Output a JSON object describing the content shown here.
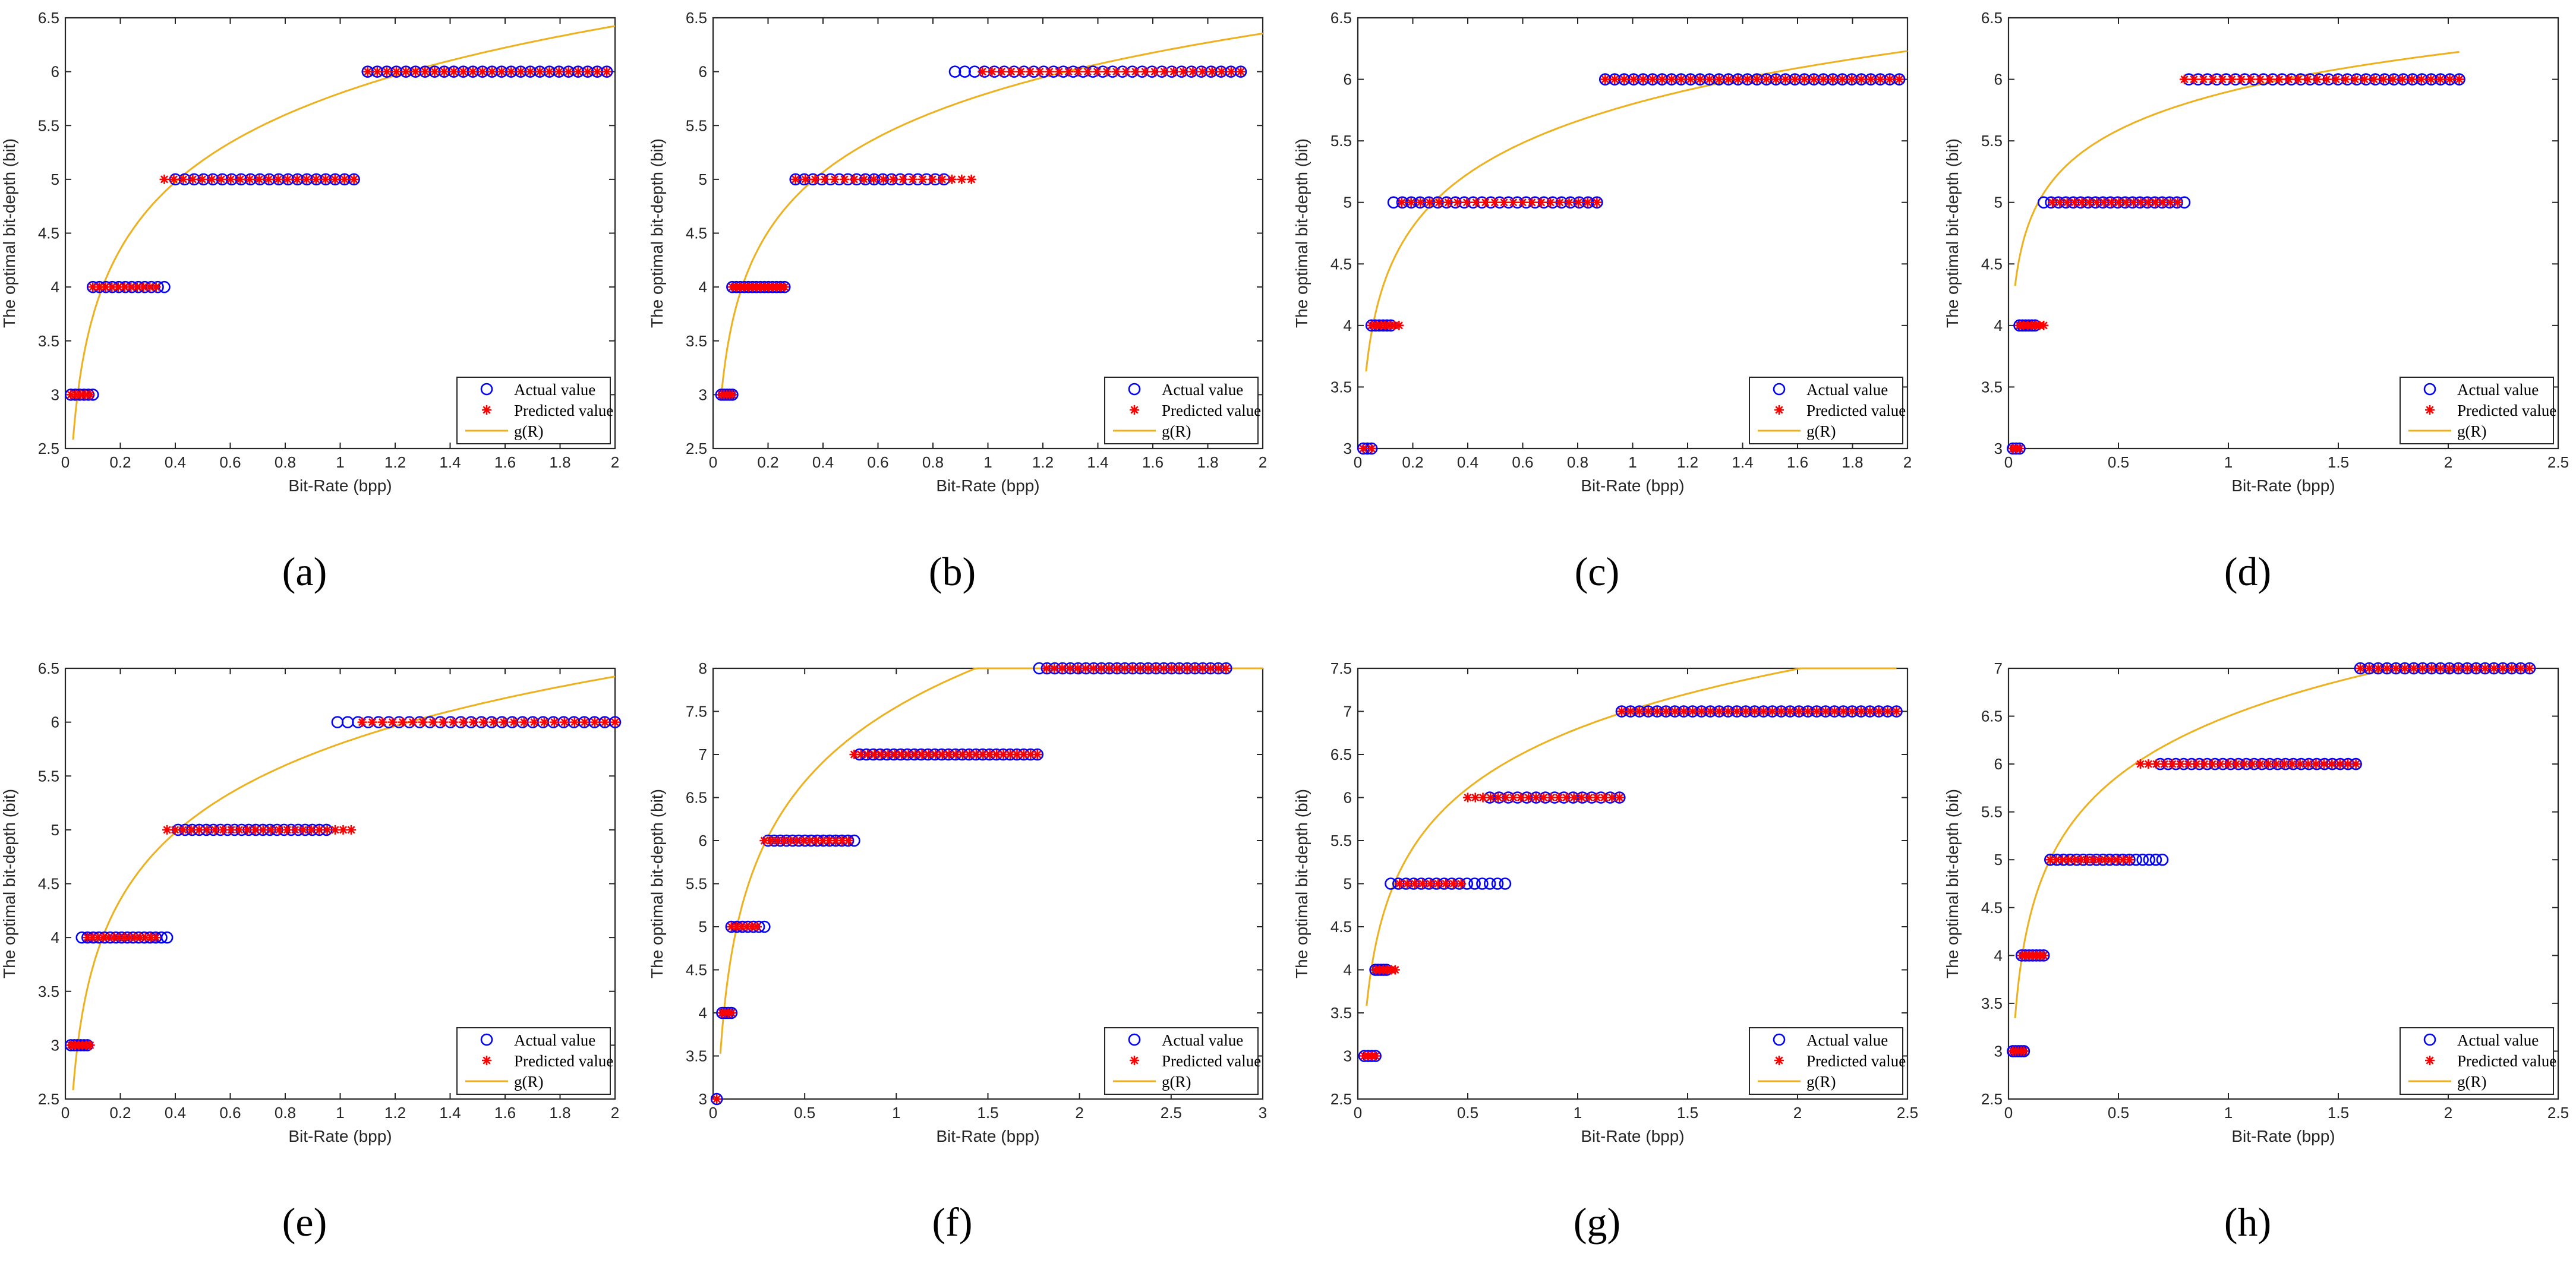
{
  "figure": {
    "common": {
      "xlabel": "Bit-Rate (bpp)",
      "ylabel": "The optimal bit-depth (bit)",
      "legend": [
        "Actual value",
        "Predicted value",
        "g(R)"
      ],
      "legend_position": "bottom-right",
      "colors": {
        "actual": "#0000ff",
        "predicted": "#ff0000",
        "curve": "#edb120",
        "axis": "#262626"
      }
    }
  },
  "chart_data": [
    {
      "label": "(a)",
      "type": "scatter",
      "xlim": [
        0,
        2
      ],
      "xticks": [
        0,
        0.2,
        0.4,
        0.6,
        0.8,
        1,
        1.2,
        1.4,
        1.6,
        1.8,
        2
      ],
      "ylim": [
        2.5,
        6.5
      ],
      "yticks": [
        2.5,
        3,
        3.5,
        4,
        4.5,
        5,
        5.5,
        6,
        6.5
      ],
      "actual": [
        {
          "level": 3,
          "x_from": 0.02,
          "x_to": 0.1,
          "count": 6
        },
        {
          "level": 4,
          "x_from": 0.1,
          "x_to": 0.36,
          "count": 12
        },
        {
          "level": 5,
          "x_from": 0.4,
          "x_to": 1.05,
          "count": 20
        },
        {
          "level": 6,
          "x_from": 1.1,
          "x_to": 1.97,
          "count": 26
        }
      ],
      "predicted": [
        {
          "level": 3,
          "x_from": 0.02,
          "x_to": 0.09,
          "count": 5
        },
        {
          "level": 4,
          "x_from": 0.1,
          "x_to": 0.33,
          "count": 11
        },
        {
          "level": 5,
          "x_from": 0.36,
          "x_to": 1.05,
          "count": 21
        },
        {
          "level": 6,
          "x_from": 1.1,
          "x_to": 1.97,
          "count": 26
        }
      ],
      "curve": {
        "a": 5.8,
        "b": 0.9,
        "x_from": 0.028
      }
    },
    {
      "label": "(b)",
      "type": "scatter",
      "xlim": [
        0,
        2
      ],
      "xticks": [
        0,
        0.2,
        0.4,
        0.6,
        0.8,
        1,
        1.2,
        1.4,
        1.6,
        1.8,
        2
      ],
      "ylim": [
        2.5,
        6.5
      ],
      "yticks": [
        2.5,
        3,
        3.5,
        4,
        4.5,
        5,
        5.5,
        6,
        6.5
      ],
      "actual": [
        {
          "level": 3,
          "x_from": 0.03,
          "x_to": 0.07,
          "count": 5
        },
        {
          "level": 4,
          "x_from": 0.07,
          "x_to": 0.26,
          "count": 14
        },
        {
          "level": 5,
          "x_from": 0.3,
          "x_to": 0.84,
          "count": 18
        },
        {
          "level": 6,
          "x_from": 0.88,
          "x_to": 1.92,
          "count": 30
        }
      ],
      "predicted": [
        {
          "level": 3,
          "x_from": 0.03,
          "x_to": 0.07,
          "count": 5
        },
        {
          "level": 4,
          "x_from": 0.07,
          "x_to": 0.26,
          "count": 14
        },
        {
          "level": 5,
          "x_from": 0.3,
          "x_to": 0.94,
          "count": 19
        },
        {
          "level": 6,
          "x_from": 0.98,
          "x_to": 1.92,
          "count": 28
        }
      ],
      "curve": {
        "a": 5.8,
        "b": 0.8,
        "x_from": 0.03
      }
    },
    {
      "label": "(c)",
      "type": "scatter",
      "xlim": [
        0,
        2
      ],
      "xticks": [
        0,
        0.2,
        0.4,
        0.6,
        0.8,
        1,
        1.2,
        1.4,
        1.6,
        1.8,
        2
      ],
      "ylim": [
        3,
        6.5
      ],
      "yticks": [
        3,
        3.5,
        4,
        4.5,
        5,
        5.5,
        6,
        6.5
      ],
      "actual": [
        {
          "level": 3,
          "x_from": 0.02,
          "x_to": 0.05,
          "count": 3
        },
        {
          "level": 4,
          "x_from": 0.05,
          "x_to": 0.12,
          "count": 6
        },
        {
          "level": 5,
          "x_from": 0.13,
          "x_to": 0.87,
          "count": 24
        },
        {
          "level": 6,
          "x_from": 0.9,
          "x_to": 1.97,
          "count": 32
        }
      ],
      "predicted": [
        {
          "level": 3,
          "x_from": 0.02,
          "x_to": 0.05,
          "count": 2
        },
        {
          "level": 4,
          "x_from": 0.05,
          "x_to": 0.15,
          "count": 7
        },
        {
          "level": 5,
          "x_from": 0.16,
          "x_to": 0.87,
          "count": 22
        },
        {
          "level": 6,
          "x_from": 0.9,
          "x_to": 1.97,
          "count": 32
        }
      ],
      "curve": {
        "a": 5.8,
        "b": 0.62,
        "x_from": 0.03
      }
    },
    {
      "label": "(d)",
      "type": "scatter",
      "xlim": [
        0,
        2.5
      ],
      "xticks": [
        0,
        0.5,
        1,
        1.5,
        2,
        2.5
      ],
      "ylim": [
        3,
        6.5
      ],
      "yticks": [
        3,
        3.5,
        4,
        4.5,
        5,
        5.5,
        6,
        6.5
      ],
      "actual": [
        {
          "level": 3,
          "x_from": 0.02,
          "x_to": 0.05,
          "count": 3
        },
        {
          "level": 4,
          "x_from": 0.05,
          "x_to": 0.12,
          "count": 6
        },
        {
          "level": 5,
          "x_from": 0.16,
          "x_to": 0.8,
          "count": 20
        },
        {
          "level": 6,
          "x_from": 0.82,
          "x_to": 2.05,
          "count": 30
        }
      ],
      "predicted": [
        {
          "level": 3,
          "x_from": 0.02,
          "x_to": 0.05,
          "count": 3
        },
        {
          "level": 4,
          "x_from": 0.05,
          "x_to": 0.16,
          "count": 7
        },
        {
          "level": 5,
          "x_from": 0.2,
          "x_to": 0.77,
          "count": 18
        },
        {
          "level": 6,
          "x_from": 0.8,
          "x_to": 2.05,
          "count": 30
        }
      ],
      "curve": {
        "a": 5.9,
        "b": 0.45,
        "x_from": 0.03,
        "x_to": 2.05
      }
    },
    {
      "label": "(e)",
      "type": "scatter",
      "xlim": [
        0,
        2
      ],
      "xticks": [
        0,
        0.2,
        0.4,
        0.6,
        0.8,
        1,
        1.2,
        1.4,
        1.6,
        1.8,
        2
      ],
      "ylim": [
        2.5,
        6.5
      ],
      "yticks": [
        2.5,
        3,
        3.5,
        4,
        4.5,
        5,
        5.5,
        6,
        6.5
      ],
      "actual": [
        {
          "level": 3,
          "x_from": 0.02,
          "x_to": 0.08,
          "count": 6
        },
        {
          "level": 4,
          "x_from": 0.06,
          "x_to": 0.37,
          "count": 16
        },
        {
          "level": 5,
          "x_from": 0.41,
          "x_to": 0.95,
          "count": 22
        },
        {
          "level": 6,
          "x_from": 0.99,
          "x_to": 2.0,
          "count": 28
        }
      ],
      "predicted": [
        {
          "level": 3,
          "x_from": 0.02,
          "x_to": 0.09,
          "count": 6
        },
        {
          "level": 4,
          "x_from": 0.08,
          "x_to": 0.33,
          "count": 14
        },
        {
          "level": 5,
          "x_from": 0.37,
          "x_to": 1.04,
          "count": 24
        },
        {
          "level": 6,
          "x_from": 1.08,
          "x_to": 2.0,
          "count": 26
        }
      ],
      "curve": {
        "a": 5.8,
        "b": 0.9,
        "x_from": 0.028
      }
    },
    {
      "label": "(f)",
      "type": "scatter",
      "xlim": [
        0,
        3
      ],
      "xticks": [
        0,
        0.5,
        1,
        1.5,
        2,
        2.5,
        3
      ],
      "ylim": [
        3,
        8
      ],
      "yticks": [
        3,
        3.5,
        4,
        4.5,
        5,
        5.5,
        6,
        6.5,
        7,
        7.5,
        8
      ],
      "actual": [
        {
          "level": 3,
          "x_from": 0.02,
          "x_to": 0.03,
          "count": 1
        },
        {
          "level": 4,
          "x_from": 0.05,
          "x_to": 0.1,
          "count": 4
        },
        {
          "level": 5,
          "x_from": 0.1,
          "x_to": 0.28,
          "count": 7
        },
        {
          "level": 6,
          "x_from": 0.3,
          "x_to": 0.77,
          "count": 15
        },
        {
          "level": 7,
          "x_from": 0.8,
          "x_to": 1.77,
          "count": 27
        },
        {
          "level": 8,
          "x_from": 1.78,
          "x_to": 2.8,
          "count": 25
        }
      ],
      "predicted": [
        {
          "level": 3,
          "x_from": 0.02,
          "x_to": 0.03,
          "count": 1
        },
        {
          "level": 4,
          "x_from": 0.05,
          "x_to": 0.1,
          "count": 4
        },
        {
          "level": 5,
          "x_from": 0.1,
          "x_to": 0.24,
          "count": 6
        },
        {
          "level": 6,
          "x_from": 0.28,
          "x_to": 0.74,
          "count": 14
        },
        {
          "level": 7,
          "x_from": 0.77,
          "x_to": 1.77,
          "count": 28
        },
        {
          "level": 8,
          "x_from": 1.82,
          "x_to": 2.8,
          "count": 24
        }
      ],
      "curve": {
        "a": 7.55,
        "b": 1.25,
        "x_from": 0.04
      }
    },
    {
      "label": "(g)",
      "type": "scatter",
      "xlim": [
        0,
        2.5
      ],
      "xticks": [
        0,
        0.5,
        1,
        1.5,
        2,
        2.5
      ],
      "ylim": [
        2.5,
        7.5
      ],
      "yticks": [
        2.5,
        3,
        3.5,
        4,
        4.5,
        5,
        5.5,
        6,
        6.5,
        7,
        7.5
      ],
      "actual": [
        {
          "level": 3,
          "x_from": 0.03,
          "x_to": 0.08,
          "count": 4
        },
        {
          "level": 4,
          "x_from": 0.08,
          "x_to": 0.13,
          "count": 5
        },
        {
          "level": 5,
          "x_from": 0.15,
          "x_to": 0.67,
          "count": 16
        },
        {
          "level": 6,
          "x_from": 0.6,
          "x_to": 1.19,
          "count": 15
        },
        {
          "level": 7,
          "x_from": 1.2,
          "x_to": 2.45,
          "count": 32
        }
      ],
      "predicted": [
        {
          "level": 3,
          "x_from": 0.03,
          "x_to": 0.08,
          "count": 4
        },
        {
          "level": 4,
          "x_from": 0.08,
          "x_to": 0.17,
          "count": 6
        },
        {
          "level": 5,
          "x_from": 0.19,
          "x_to": 0.47,
          "count": 9
        },
        {
          "level": 6,
          "x_from": 0.5,
          "x_to": 1.19,
          "count": 21
        },
        {
          "level": 7,
          "x_from": 1.2,
          "x_to": 2.45,
          "count": 32
        }
      ],
      "curve": {
        "a": 6.8,
        "b": 1.0,
        "x_from": 0.04,
        "x_to": 2.45
      }
    },
    {
      "label": "(h)",
      "type": "scatter",
      "xlim": [
        0,
        2.5
      ],
      "xticks": [
        0,
        0.5,
        1,
        1.5,
        2,
        2.5
      ],
      "ylim": [
        2.5,
        7
      ],
      "yticks": [
        2.5,
        3,
        3.5,
        4,
        4.5,
        5,
        5.5,
        6,
        6.5,
        7
      ],
      "actual": [
        {
          "level": 3,
          "x_from": 0.02,
          "x_to": 0.07,
          "count": 5
        },
        {
          "level": 4,
          "x_from": 0.06,
          "x_to": 0.16,
          "count": 7
        },
        {
          "level": 5,
          "x_from": 0.19,
          "x_to": 0.7,
          "count": 18
        },
        {
          "level": 6,
          "x_from": 0.69,
          "x_to": 1.58,
          "count": 26
        },
        {
          "level": 7,
          "x_from": 1.6,
          "x_to": 2.37,
          "count": 20
        }
      ],
      "predicted": [
        {
          "level": 3,
          "x_from": 0.02,
          "x_to": 0.07,
          "count": 5
        },
        {
          "level": 4,
          "x_from": 0.06,
          "x_to": 0.16,
          "count": 7
        },
        {
          "level": 5,
          "x_from": 0.19,
          "x_to": 0.55,
          "count": 14
        },
        {
          "level": 6,
          "x_from": 0.6,
          "x_to": 1.58,
          "count": 28
        },
        {
          "level": 7,
          "x_from": 1.6,
          "x_to": 2.37,
          "count": 20
        }
      ],
      "curve": {
        "a": 6.5,
        "b": 0.9,
        "x_from": 0.03,
        "x_to": 2.37
      }
    }
  ]
}
